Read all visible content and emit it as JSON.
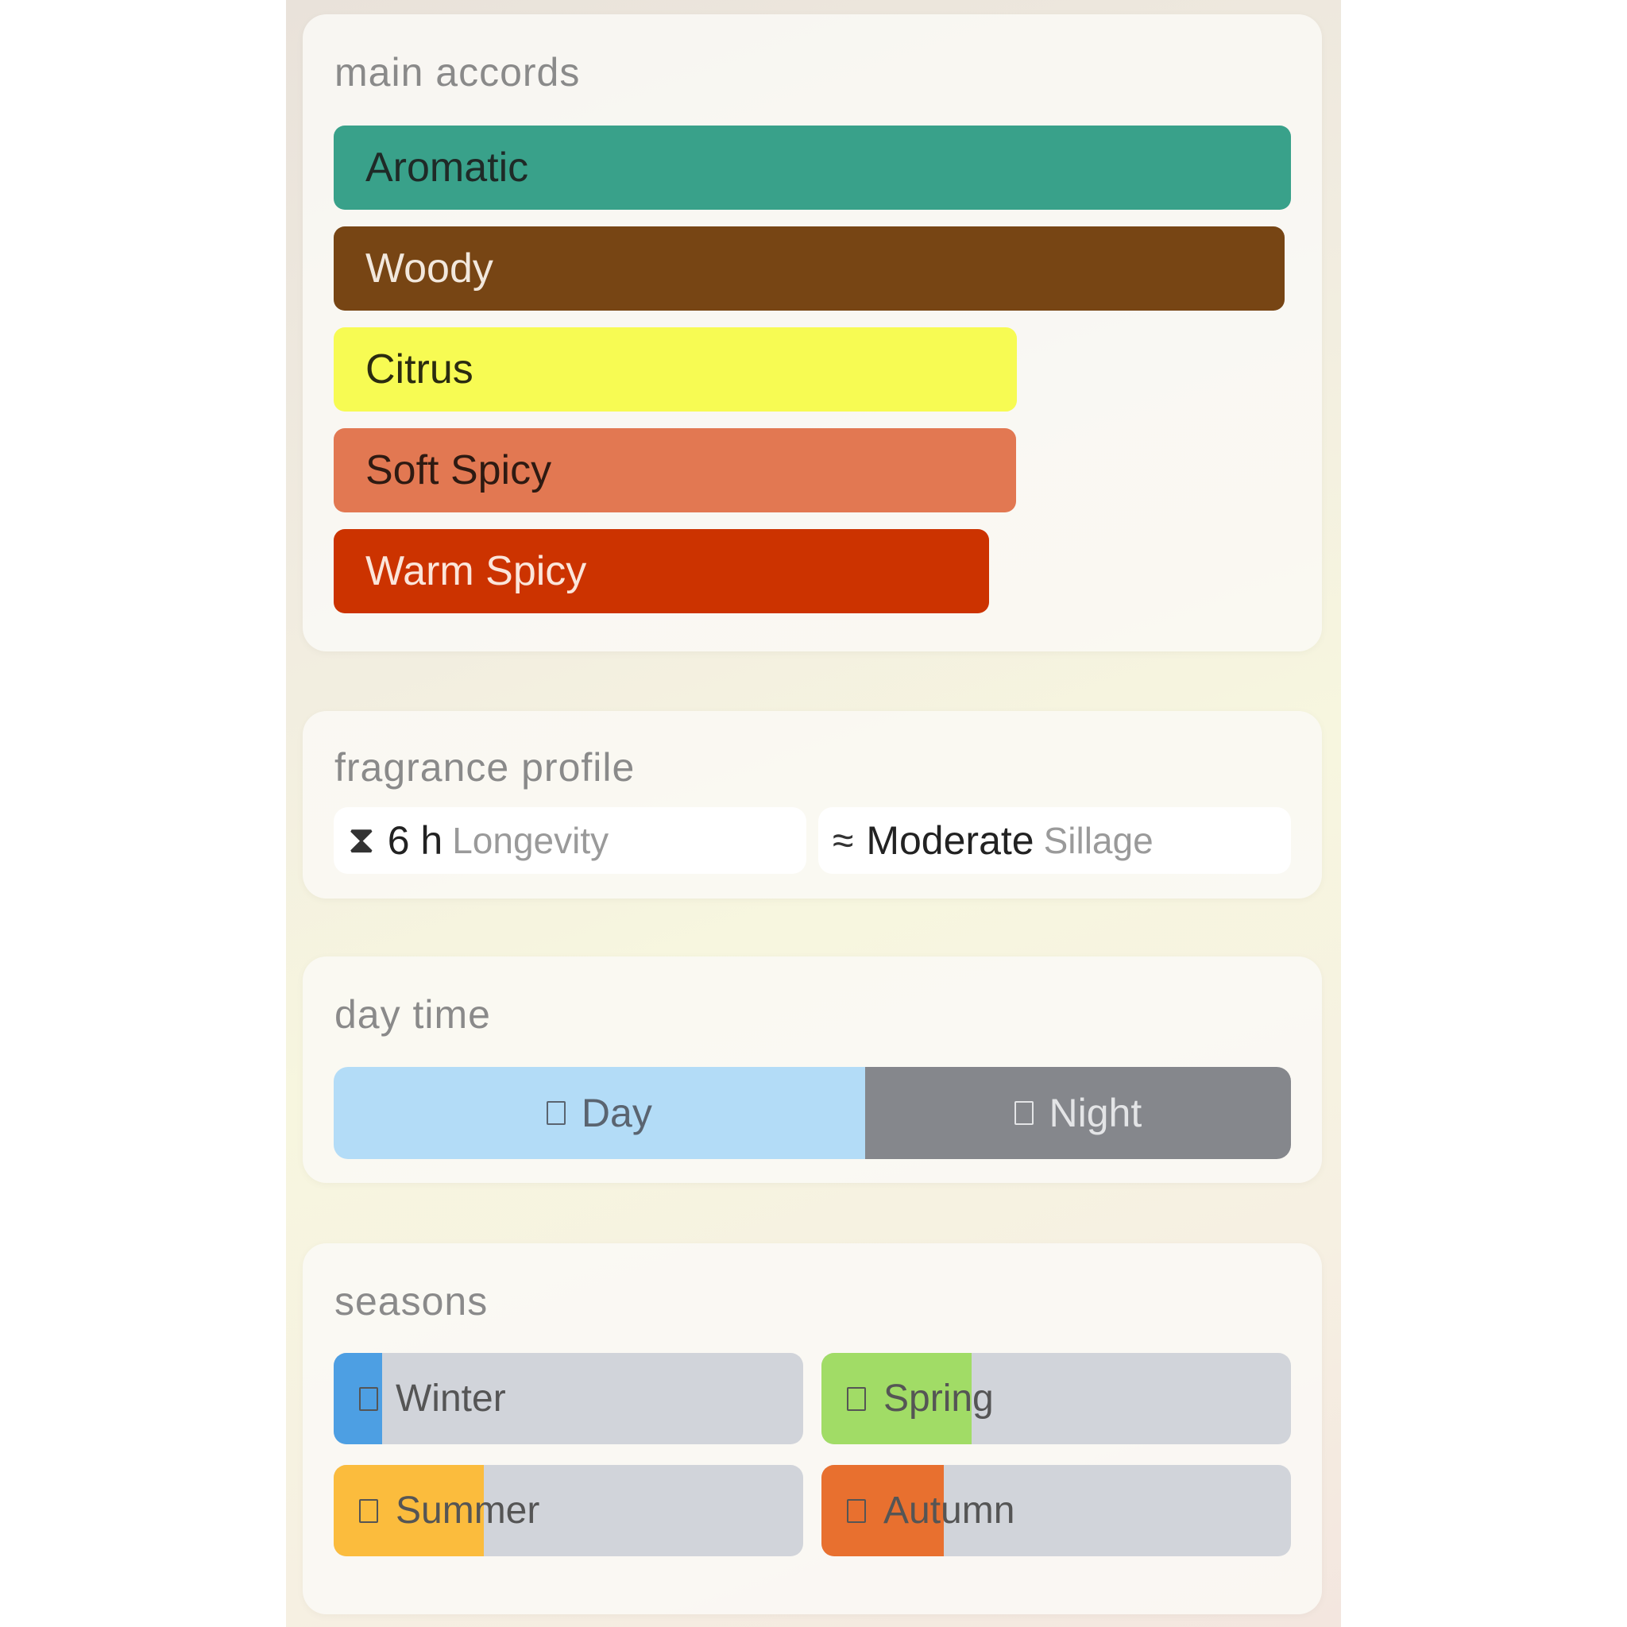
{
  "main_accords": {
    "title": "main accords",
    "items": [
      {
        "label": "Aromatic",
        "percent": 100,
        "color": "#39a18a",
        "text_color": "#1f2a27"
      },
      {
        "label": "Woody",
        "percent": 99.3,
        "color": "#774514",
        "text_color": "#f2e8dd"
      },
      {
        "label": "Citrus",
        "percent": 71.4,
        "color": "#f7fb53",
        "text_color": "#2b2b10"
      },
      {
        "label": "Soft Spicy",
        "percent": 71.3,
        "color": "#e27852",
        "text_color": "#2e1a12"
      },
      {
        "label": "Warm Spicy",
        "percent": 68.5,
        "color": "#cc3300",
        "text_color": "#fbe5da"
      }
    ]
  },
  "fragrance_profile": {
    "title": "fragrance profile",
    "longevity": {
      "icon": "hourglass-icon",
      "value": "6 h",
      "label": "Longevity"
    },
    "sillage": {
      "icon": "waves-icon",
      "value": "Moderate",
      "label": "Sillage"
    }
  },
  "day_time": {
    "title": "day time",
    "day": {
      "label": "Day",
      "percent": 55.5,
      "color": "#b3dcf7"
    },
    "night": {
      "label": "Night",
      "color": "#85878c"
    }
  },
  "seasons": {
    "title": "seasons",
    "items": [
      {
        "label": "Winter",
        "percent": 10.4,
        "color": "#4d9fe3"
      },
      {
        "label": "Spring",
        "percent": 31.9,
        "color": "#a1dc66"
      },
      {
        "label": "Summer",
        "percent": 31.9,
        "color": "#fbbc3d"
      },
      {
        "label": "Autumn",
        "percent": 26.1,
        "color": "#e8702f"
      }
    ]
  }
}
